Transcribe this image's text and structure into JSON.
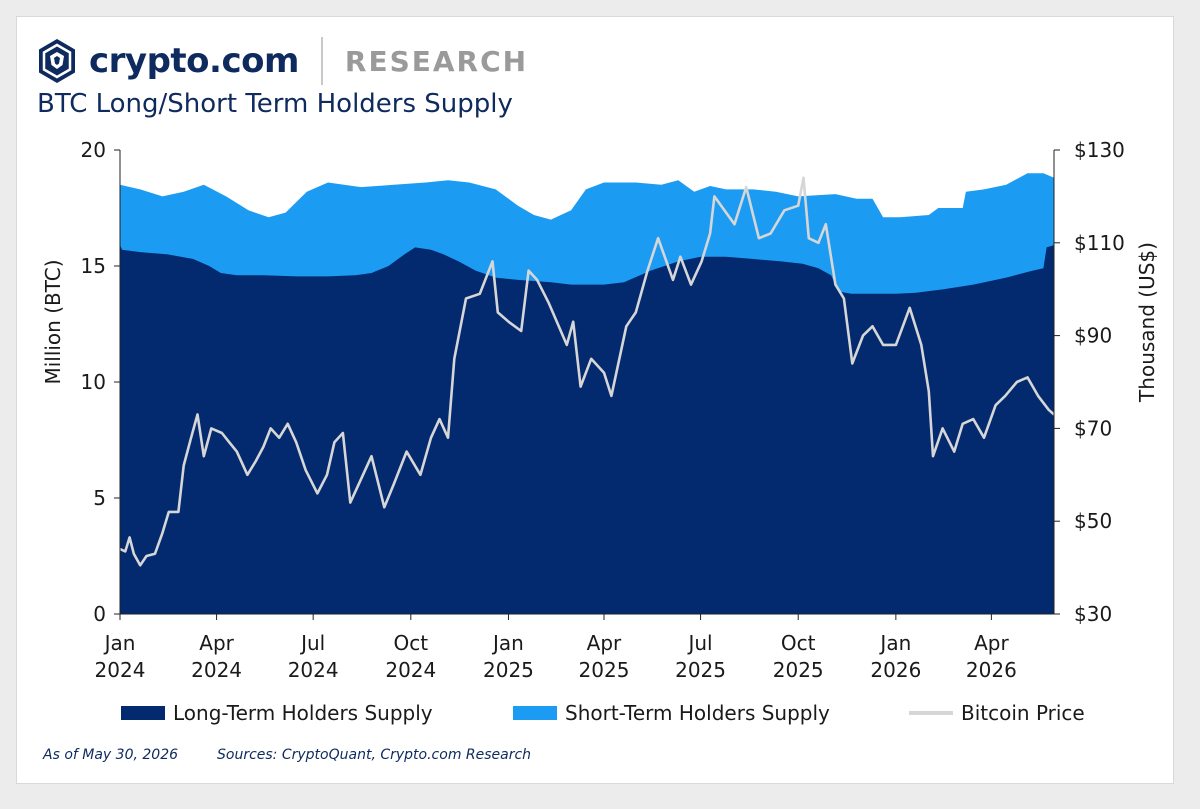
{
  "header": {
    "brand": "crypto.com",
    "section": "RESEARCH"
  },
  "icons": {
    "logo": "crypto-com-lion-shield-icon"
  },
  "colors": {
    "brand_navy": "#0e2a5e",
    "long_term": "#03296e",
    "short_term": "#1b9cf2",
    "price_line": "#d6d6d6"
  },
  "footer": {
    "as_of": "As of May 30, 2026",
    "sources": "Sources: CryptoQuant, Crypto.com Research"
  },
  "chart_data": {
    "type": "area",
    "title": "BTC Long/Short Term Holders Supply",
    "ylabel_left": "Million (BTC)",
    "ylabel_right": "Thousand (US$)",
    "ylim_left": [
      0,
      20
    ],
    "ylim_right": [
      30,
      130
    ],
    "yticks_left": [
      "0",
      "5",
      "10",
      "15",
      "20"
    ],
    "yticks_right": [
      "$30",
      "$50",
      "$70",
      "$90",
      "$110",
      "$130"
    ],
    "xlim": [
      "2024-01-01",
      "2026-05-30"
    ],
    "xticks": [
      {
        "date": "2024-01-01",
        "line1": "Jan",
        "line2": "2024"
      },
      {
        "date": "2024-04-01",
        "line1": "Apr",
        "line2": "2024"
      },
      {
        "date": "2024-07-01",
        "line1": "Jul",
        "line2": "2024"
      },
      {
        "date": "2024-10-01",
        "line1": "Oct",
        "line2": "2024"
      },
      {
        "date": "2025-01-01",
        "line1": "Jan",
        "line2": "2025"
      },
      {
        "date": "2025-04-01",
        "line1": "Apr",
        "line2": "2025"
      },
      {
        "date": "2025-07-01",
        "line1": "Jul",
        "line2": "2025"
      },
      {
        "date": "2025-10-01",
        "line1": "Oct",
        "line2": "2025"
      },
      {
        "date": "2026-01-01",
        "line1": "Jan",
        "line2": "2026"
      },
      {
        "date": "2026-04-01",
        "line1": "Apr",
        "line2": "2026"
      }
    ],
    "legend_placement": "bottom",
    "grid": false,
    "series": [
      {
        "name": "Long-Term Holders Supply",
        "axis": "left",
        "kind": "area",
        "points": [
          [
            "2024-01-01",
            15.9
          ],
          [
            "2024-01-03",
            15.7
          ],
          [
            "2024-01-20",
            15.6
          ],
          [
            "2024-02-15",
            15.5
          ],
          [
            "2024-03-10",
            15.3
          ],
          [
            "2024-03-25",
            15.0
          ],
          [
            "2024-04-05",
            14.7
          ],
          [
            "2024-04-20",
            14.6
          ],
          [
            "2024-05-15",
            14.6
          ],
          [
            "2024-06-15",
            14.55
          ],
          [
            "2024-07-15",
            14.55
          ],
          [
            "2024-08-10",
            14.6
          ],
          [
            "2024-08-25",
            14.7
          ],
          [
            "2024-09-10",
            15.0
          ],
          [
            "2024-09-25",
            15.5
          ],
          [
            "2024-10-05",
            15.8
          ],
          [
            "2024-10-20",
            15.7
          ],
          [
            "2024-11-01",
            15.5
          ],
          [
            "2024-11-15",
            15.2
          ],
          [
            "2024-12-01",
            14.8
          ],
          [
            "2024-12-20",
            14.5
          ],
          [
            "2025-01-10",
            14.4
          ],
          [
            "2025-02-10",
            14.3
          ],
          [
            "2025-03-01",
            14.2
          ],
          [
            "2025-04-01",
            14.2
          ],
          [
            "2025-04-20",
            14.3
          ],
          [
            "2025-05-15",
            14.8
          ],
          [
            "2025-06-10",
            15.2
          ],
          [
            "2025-07-01",
            15.4
          ],
          [
            "2025-07-25",
            15.4
          ],
          [
            "2025-08-20",
            15.3
          ],
          [
            "2025-09-15",
            15.2
          ],
          [
            "2025-10-05",
            15.1
          ],
          [
            "2025-10-20",
            14.9
          ],
          [
            "2025-11-01",
            14.6
          ],
          [
            "2025-11-08",
            13.9
          ],
          [
            "2025-11-20",
            13.8
          ],
          [
            "2025-12-10",
            13.8
          ],
          [
            "2026-01-01",
            13.8
          ],
          [
            "2026-01-20",
            13.85
          ],
          [
            "2026-02-15",
            14.0
          ],
          [
            "2026-03-15",
            14.2
          ],
          [
            "2026-04-15",
            14.5
          ],
          [
            "2026-05-10",
            14.8
          ],
          [
            "2026-05-20",
            14.9
          ],
          [
            "2026-05-23",
            15.8
          ],
          [
            "2026-05-30",
            15.9
          ]
        ]
      },
      {
        "name": "Short-Term Holders Supply",
        "axis": "left",
        "kind": "stacked-total",
        "points": [
          [
            "2024-01-01",
            18.5
          ],
          [
            "2024-01-20",
            18.3
          ],
          [
            "2024-02-10",
            18.0
          ],
          [
            "2024-03-01",
            18.2
          ],
          [
            "2024-03-20",
            18.5
          ],
          [
            "2024-04-10",
            18.0
          ],
          [
            "2024-05-01",
            17.4
          ],
          [
            "2024-05-20",
            17.1
          ],
          [
            "2024-06-05",
            17.3
          ],
          [
            "2024-06-25",
            18.2
          ],
          [
            "2024-07-15",
            18.6
          ],
          [
            "2024-08-15",
            18.4
          ],
          [
            "2024-09-15",
            18.5
          ],
          [
            "2024-10-15",
            18.6
          ],
          [
            "2024-11-05",
            18.7
          ],
          [
            "2024-11-25",
            18.6
          ],
          [
            "2024-12-20",
            18.3
          ],
          [
            "2025-01-10",
            17.6
          ],
          [
            "2025-01-25",
            17.2
          ],
          [
            "2025-02-10",
            17.0
          ],
          [
            "2025-03-01",
            17.4
          ],
          [
            "2025-03-15",
            18.3
          ],
          [
            "2025-04-01",
            18.6
          ],
          [
            "2025-05-01",
            18.6
          ],
          [
            "2025-05-25",
            18.5
          ],
          [
            "2025-06-10",
            18.7
          ],
          [
            "2025-06-25",
            18.2
          ],
          [
            "2025-07-10",
            18.45
          ],
          [
            "2025-07-25",
            18.3
          ],
          [
            "2025-08-20",
            18.3
          ],
          [
            "2025-09-10",
            18.2
          ],
          [
            "2025-10-01",
            18.0
          ],
          [
            "2025-11-05",
            18.1
          ],
          [
            "2025-11-25",
            17.9
          ],
          [
            "2025-12-10",
            17.9
          ],
          [
            "2025-12-20",
            17.1
          ],
          [
            "2026-01-05",
            17.1
          ],
          [
            "2026-02-01",
            17.2
          ],
          [
            "2026-02-10",
            17.5
          ],
          [
            "2026-03-05",
            17.5
          ],
          [
            "2026-03-08",
            18.2
          ],
          [
            "2026-03-25",
            18.3
          ],
          [
            "2026-04-15",
            18.5
          ],
          [
            "2026-05-05",
            19.0
          ],
          [
            "2026-05-20",
            19.0
          ],
          [
            "2026-05-30",
            18.8
          ]
        ]
      },
      {
        "name": "Bitcoin Price",
        "axis": "right",
        "kind": "line",
        "points": [
          [
            "2024-01-01",
            44
          ],
          [
            "2024-01-06",
            43.5
          ],
          [
            "2024-01-10",
            46.5
          ],
          [
            "2024-01-14",
            43
          ],
          [
            "2024-01-20",
            40.5
          ],
          [
            "2024-01-26",
            42.5
          ],
          [
            "2024-02-03",
            43
          ],
          [
            "2024-02-10",
            47.5
          ],
          [
            "2024-02-16",
            52
          ],
          [
            "2024-02-25",
            52
          ],
          [
            "2024-03-01",
            62
          ],
          [
            "2024-03-08",
            68
          ],
          [
            "2024-03-14",
            73
          ],
          [
            "2024-03-20",
            64
          ],
          [
            "2024-03-27",
            70
          ],
          [
            "2024-04-06",
            69
          ],
          [
            "2024-04-13",
            67
          ],
          [
            "2024-04-20",
            65
          ],
          [
            "2024-04-30",
            60
          ],
          [
            "2024-05-08",
            63
          ],
          [
            "2024-05-15",
            66
          ],
          [
            "2024-05-22",
            70
          ],
          [
            "2024-05-30",
            68
          ],
          [
            "2024-06-07",
            71
          ],
          [
            "2024-06-15",
            67
          ],
          [
            "2024-06-24",
            61
          ],
          [
            "2024-07-05",
            56
          ],
          [
            "2024-07-14",
            60
          ],
          [
            "2024-07-21",
            67
          ],
          [
            "2024-07-29",
            69
          ],
          [
            "2024-08-05",
            54
          ],
          [
            "2024-08-15",
            59
          ],
          [
            "2024-08-25",
            64
          ],
          [
            "2024-09-06",
            53
          ],
          [
            "2024-09-15",
            58
          ],
          [
            "2024-09-27",
            65
          ],
          [
            "2024-10-10",
            60
          ],
          [
            "2024-10-20",
            68
          ],
          [
            "2024-10-28",
            72
          ],
          [
            "2024-11-05",
            68
          ],
          [
            "2024-11-11",
            85
          ],
          [
            "2024-11-22",
            98
          ],
          [
            "2024-12-05",
            99
          ],
          [
            "2024-12-17",
            106
          ],
          [
            "2024-12-22",
            95
          ],
          [
            "2025-01-01",
            93
          ],
          [
            "2025-01-13",
            91
          ],
          [
            "2025-01-20",
            104
          ],
          [
            "2025-01-28",
            102
          ],
          [
            "2025-02-08",
            97
          ],
          [
            "2025-02-25",
            88
          ],
          [
            "2025-03-03",
            93
          ],
          [
            "2025-03-10",
            79
          ],
          [
            "2025-03-20",
            85
          ],
          [
            "2025-04-01",
            82
          ],
          [
            "2025-04-08",
            77
          ],
          [
            "2025-04-22",
            92
          ],
          [
            "2025-05-01",
            95
          ],
          [
            "2025-05-12",
            104
          ],
          [
            "2025-05-22",
            111
          ],
          [
            "2025-06-05",
            102
          ],
          [
            "2025-06-12",
            107
          ],
          [
            "2025-06-22",
            101
          ],
          [
            "2025-07-02",
            106
          ],
          [
            "2025-07-10",
            112
          ],
          [
            "2025-07-14",
            120
          ],
          [
            "2025-08-02",
            114
          ],
          [
            "2025-08-13",
            122
          ],
          [
            "2025-08-25",
            111
          ],
          [
            "2025-09-05",
            112
          ],
          [
            "2025-09-18",
            117
          ],
          [
            "2025-10-01",
            118
          ],
          [
            "2025-10-06",
            124
          ],
          [
            "2025-10-11",
            111
          ],
          [
            "2025-10-20",
            110
          ],
          [
            "2025-10-27",
            114
          ],
          [
            "2025-11-05",
            101
          ],
          [
            "2025-11-13",
            98
          ],
          [
            "2025-11-21",
            84
          ],
          [
            "2025-12-01",
            90
          ],
          [
            "2025-12-10",
            92
          ],
          [
            "2025-12-20",
            88
          ],
          [
            "2026-01-01",
            88
          ],
          [
            "2026-01-14",
            96
          ],
          [
            "2026-01-25",
            88
          ],
          [
            "2026-02-01",
            78
          ],
          [
            "2026-02-05",
            64
          ],
          [
            "2026-02-14",
            70
          ],
          [
            "2026-02-25",
            65
          ],
          [
            "2026-03-05",
            71
          ],
          [
            "2026-03-15",
            72
          ],
          [
            "2026-03-25",
            68
          ],
          [
            "2026-04-05",
            75
          ],
          [
            "2026-04-14",
            77
          ],
          [
            "2026-04-25",
            80
          ],
          [
            "2026-05-05",
            81
          ],
          [
            "2026-05-15",
            77
          ],
          [
            "2026-05-25",
            74
          ],
          [
            "2026-05-30",
            73
          ]
        ]
      }
    ]
  }
}
